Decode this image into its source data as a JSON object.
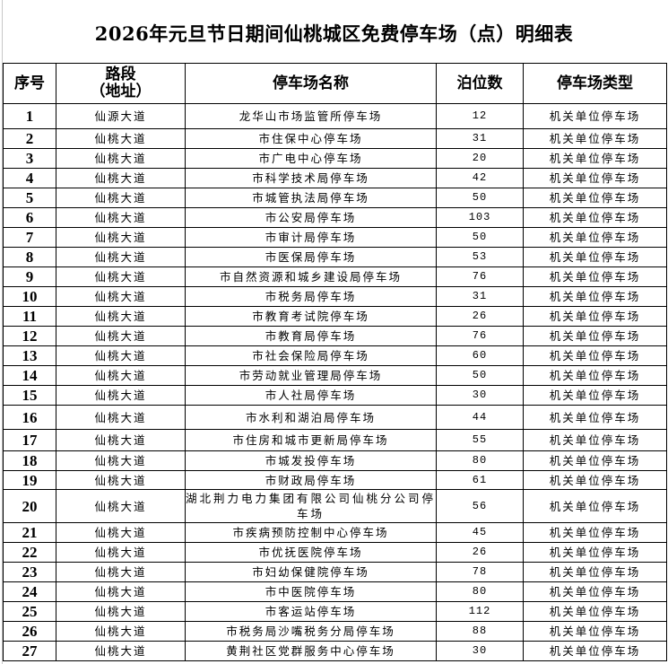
{
  "title": "2026年元旦节日期间仙桃城区免费停车场（点）明细表",
  "headers": [
    "序号",
    "路段\n（地址）",
    "停车场名称",
    "泊位数",
    "停车场类型"
  ],
  "rows": [
    [
      "1",
      "仙源大道",
      "龙华山市场监管所停车场",
      "12",
      "机关单位停车场"
    ],
    [
      "2",
      "仙桃大道",
      "市住保中心停车场",
      "31",
      "机关单位停车场"
    ],
    [
      "3",
      "仙桃大道",
      "市广电中心停车场",
      "20",
      "机关单位停车场"
    ],
    [
      "4",
      "仙桃大道",
      "市科学技术局停车场",
      "42",
      "机关单位停车场"
    ],
    [
      "5",
      "仙桃大道",
      "市城管执法局停车场",
      "50",
      "机关单位停车场"
    ],
    [
      "6",
      "仙桃大道",
      "市公安局停车场",
      "103",
      "机关单位停车场"
    ],
    [
      "7",
      "仙桃大道",
      "市审计局停车场",
      "50",
      "机关单位停车场"
    ],
    [
      "8",
      "仙桃大道",
      "市医保局停车场",
      "53",
      "机关单位停车场"
    ],
    [
      "9",
      "仙桃大道",
      "市自然资源和城乡建设局停车场",
      "76",
      "机关单位停车场"
    ],
    [
      "10",
      "仙桃大道",
      "市税务局停车场",
      "31",
      "机关单位停车场"
    ],
    [
      "11",
      "仙桃大道",
      "市教育考试院停车场",
      "26",
      "机关单位停车场"
    ],
    [
      "12",
      "仙桃大道",
      "市教育局停车场",
      "76",
      "机关单位停车场"
    ],
    [
      "13",
      "仙桃大道",
      "市社会保险局停车场",
      "60",
      "机关单位停车场"
    ],
    [
      "14",
      "仙桃大道",
      "市劳动就业管理局停车场",
      "50",
      "机关单位停车场"
    ],
    [
      "15",
      "仙桃大道",
      "市人社局停车场",
      "30",
      "机关单位停车场"
    ],
    [
      "16",
      "仙桃大道",
      "市水利和湖泊局停车场",
      "44",
      "机关单位停车场"
    ],
    [
      "17",
      "仙桃大道",
      "市住房和城市更新局停车场",
      "55",
      "机关单位停车场"
    ],
    [
      "18",
      "仙桃大道",
      "市城发投停车场",
      "80",
      "机关单位停车场"
    ],
    [
      "19",
      "仙桃大道",
      "市财政局停车场",
      "61",
      "机关单位停车场"
    ],
    [
      "20",
      "仙桃大道",
      "湖北荆力电力集团有限公司仙桃分公司停车场",
      "56",
      "机关单位停车场"
    ],
    [
      "21",
      "仙桃大道",
      "市疾病预防控制中心停车场",
      "45",
      "机关单位停车场"
    ],
    [
      "22",
      "仙桃大道",
      "市优抚医院停车场",
      "26",
      "机关单位停车场"
    ],
    [
      "23",
      "仙桃大道",
      "市妇幼保健院停车场",
      "78",
      "机关单位停车场"
    ],
    [
      "24",
      "仙桃大道",
      "市中医院停车场",
      "80",
      "机关单位停车场"
    ],
    [
      "25",
      "仙桃大道",
      "市客运站停车场",
      "112",
      "机关单位停车场"
    ],
    [
      "26",
      "仙桃大道",
      "市税务局沙嘴税务分局停车场",
      "88",
      "机关单位停车场"
    ],
    [
      "27",
      "仙桃大道",
      "黄荆社区党群服务中心停车场",
      "30",
      "机关单位停车场"
    ]
  ]
}
